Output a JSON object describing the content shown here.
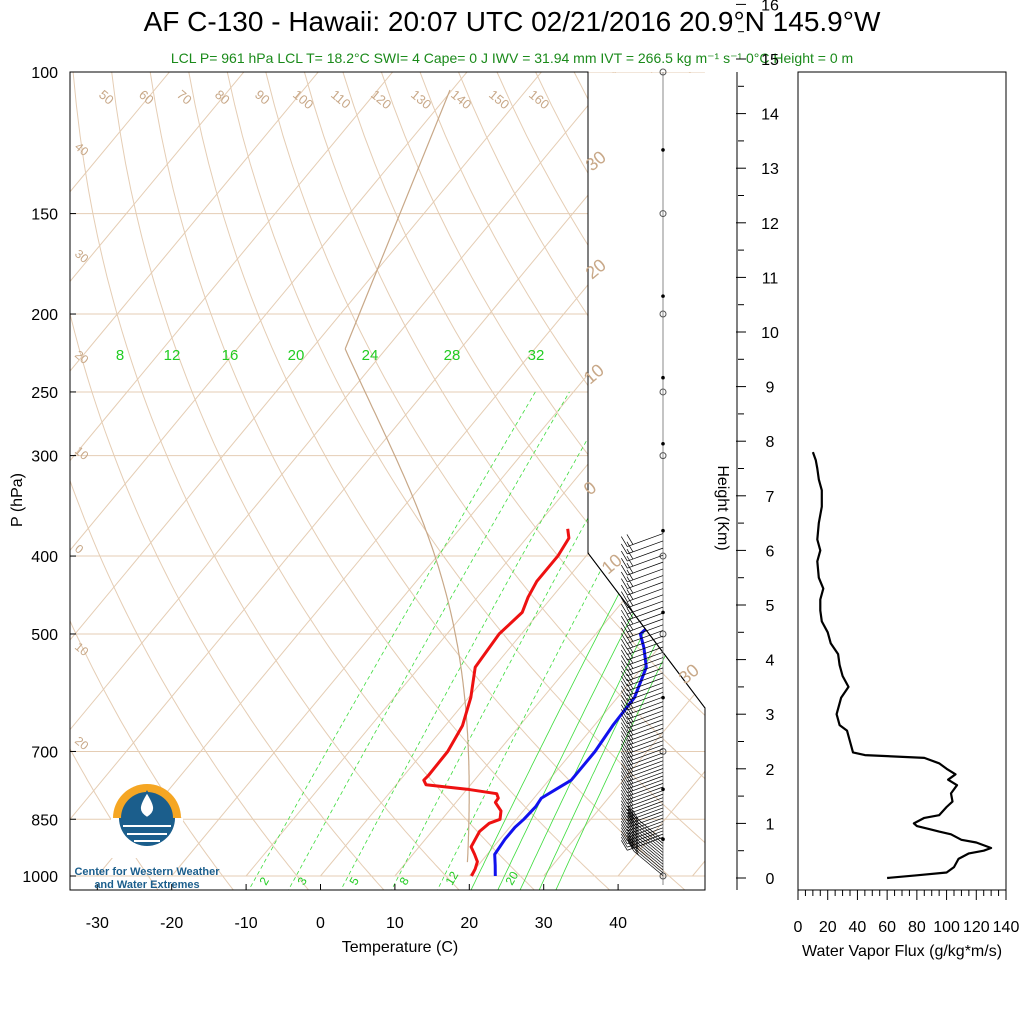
{
  "header": {
    "title": "AF C-130 - Hawaii: 20:07 UTC 02/21/2016  20.9°N 145.9°W",
    "subtitle": "LCL P= 961 hPa  LCL T= 18.2°C  SWI= 4  Cape= 0 J  IWV = 31.94 mm  IVT = 266.5 kg m⁻¹ s⁻¹  0°C Height = 0 m"
  },
  "logo": {
    "line1": "Center for Western Weather",
    "line2": "and Water Extremes"
  },
  "chart_data": [
    {
      "type": "line",
      "subtype": "skew-T log-P sounding",
      "xlabel": "Temperature (C)",
      "ylabel": "P (hPa)",
      "xlim": [
        -34,
        46
      ],
      "ylim": [
        1000,
        100
      ],
      "y_scale": "log",
      "x_ticks": [
        -30,
        -20,
        -10,
        0,
        10,
        20,
        30,
        40
      ],
      "y_ticks": [
        100,
        150,
        200,
        250,
        300,
        400,
        500,
        700,
        850,
        1000
      ],
      "series": [
        {
          "name": "Temperature",
          "color": "#ee1111",
          "p": [
            1000,
            980,
            960,
            940,
            920,
            900,
            880,
            860,
            850,
            830,
            810,
            800,
            790,
            780,
            770,
            760,
            750,
            700,
            650,
            600,
            550,
            500,
            470,
            450,
            430,
            400,
            380,
            370
          ],
          "t": [
            20.3,
            20.0,
            19.5,
            18.3,
            17.0,
            16.7,
            16.4,
            16.8,
            17.8,
            17.0,
            15.3,
            15.2,
            14.5,
            10.0,
            4.0,
            3.2,
            3.3,
            3.2,
            2.3,
            0.3,
            -2.5,
            -3.0,
            -2.3,
            -3.2,
            -3.8,
            -3.8,
            -4.3,
            -5.5
          ]
        },
        {
          "name": "Dewpoint",
          "color": "#1111ee",
          "p": [
            1000,
            970,
            940,
            900,
            870,
            850,
            820,
            800,
            780,
            760,
            700,
            650,
            600,
            550,
            520,
            500,
            480,
            460,
            440,
            420,
            400,
            380,
            370
          ],
          "t": [
            23.5,
            22.3,
            21.0,
            20.7,
            20.7,
            21.0,
            21.2,
            21.0,
            22.0,
            23.0,
            23.0,
            22.5,
            22.3,
            20.5,
            18.0,
            16.0,
            16.5,
            17.5,
            17.0,
            16.3,
            16.3,
            15.2,
            13.5
          ]
        }
      ],
      "isotherms_deg": [
        -40,
        -30,
        -20,
        -10,
        0,
        10,
        20,
        30,
        40
      ],
      "dry_adiabats_label": [
        50,
        60,
        70,
        80,
        90,
        100,
        110,
        120,
        130,
        140,
        150,
        160
      ],
      "mixing_ratio_top_labels": [
        "8",
        "12",
        "16",
        "20",
        "24",
        "28",
        "32"
      ],
      "mixing_ratio_bottom_labels": [
        "2",
        "3",
        "5",
        "8",
        "12",
        "20"
      ],
      "brown_left_labels": [
        "40",
        "30",
        "20",
        "10",
        "0",
        "10",
        "20"
      ],
      "brown_right_labels": [
        "30",
        "20",
        "10",
        "0",
        "10",
        "30"
      ]
    },
    {
      "type": "line",
      "xlabel": "Water Vapor Flux (g/kg*m/s)",
      "ylabel": "Height (Km)",
      "xlim": [
        0,
        140
      ],
      "ylim": [
        0,
        16.5
      ],
      "x_ticks": [
        0,
        20,
        40,
        60,
        80,
        100,
        120,
        140
      ],
      "y_ticks": [
        0,
        1,
        2,
        3,
        4,
        5,
        6,
        7,
        8,
        9,
        10,
        11,
        12,
        13,
        14,
        15,
        16
      ],
      "series": [
        {
          "name": "Water Vapor Flux",
          "color": "#000000",
          "points": [
            [
              60,
              0.0
            ],
            [
              80,
              0.05
            ],
            [
              100,
              0.1
            ],
            [
              105,
              0.2
            ],
            [
              108,
              0.35
            ],
            [
              115,
              0.45
            ],
            [
              125,
              0.5
            ],
            [
              130,
              0.55
            ],
            [
              120,
              0.65
            ],
            [
              110,
              0.7
            ],
            [
              103,
              0.8
            ],
            [
              95,
              0.85
            ],
            [
              88,
              0.9
            ],
            [
              80,
              0.95
            ],
            [
              78,
              1.0
            ],
            [
              85,
              1.1
            ],
            [
              95,
              1.15
            ],
            [
              100,
              1.3
            ],
            [
              104,
              1.4
            ],
            [
              103,
              1.55
            ],
            [
              107,
              1.7
            ],
            [
              101,
              1.8
            ],
            [
              106,
              1.9
            ],
            [
              100,
              2.0
            ],
            [
              95,
              2.1
            ],
            [
              85,
              2.2
            ],
            [
              45,
              2.25
            ],
            [
              37,
              2.3
            ],
            [
              35,
              2.5
            ],
            [
              33,
              2.7
            ],
            [
              28,
              2.8
            ],
            [
              26,
              3.0
            ],
            [
              29,
              3.3
            ],
            [
              34,
              3.5
            ],
            [
              30,
              3.7
            ],
            [
              28,
              3.9
            ],
            [
              27,
              4.1
            ],
            [
              22,
              4.3
            ],
            [
              20,
              4.5
            ],
            [
              16,
              4.7
            ],
            [
              15,
              4.9
            ],
            [
              15,
              5.1
            ],
            [
              17,
              5.3
            ],
            [
              14,
              5.5
            ],
            [
              13,
              5.8
            ],
            [
              15,
              6.0
            ],
            [
              13,
              6.2
            ],
            [
              14,
              6.5
            ],
            [
              16,
              6.8
            ],
            [
              16,
              7.1
            ],
            [
              14,
              7.3
            ],
            [
              13,
              7.5
            ],
            [
              12,
              7.65
            ],
            [
              10,
              7.8
            ]
          ]
        }
      ]
    }
  ]
}
